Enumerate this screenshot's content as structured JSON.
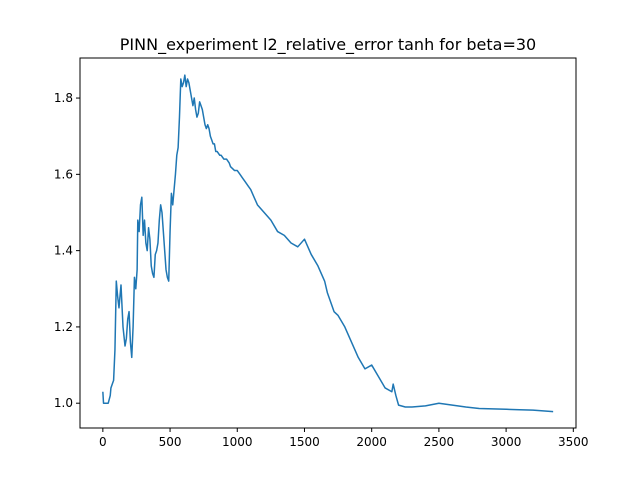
{
  "chart_data": {
    "type": "line",
    "title": "PINN_experiment l2_relative_error tanh for beta=30",
    "xlabel": "",
    "ylabel": "",
    "xlim": [
      -170,
      3520
    ],
    "ylim": [
      0.935,
      1.905
    ],
    "grid": false,
    "line_color": "#1f77b4",
    "x_ticks": [
      {
        "value": 0,
        "label": "0"
      },
      {
        "value": 500,
        "label": "500"
      },
      {
        "value": 1000,
        "label": "1000"
      },
      {
        "value": 1500,
        "label": "1500"
      },
      {
        "value": 2000,
        "label": "2000"
      },
      {
        "value": 2500,
        "label": "2500"
      },
      {
        "value": 3000,
        "label": "3000"
      },
      {
        "value": 3500,
        "label": "3500"
      }
    ],
    "y_ticks": [
      {
        "value": 1.0,
        "label": "1.0"
      },
      {
        "value": 1.2,
        "label": "1.2"
      },
      {
        "value": 1.4,
        "label": "1.4"
      },
      {
        "value": 1.6,
        "label": "1.6"
      },
      {
        "value": 1.8,
        "label": "1.8"
      }
    ],
    "series": [
      {
        "x": [
          0,
          5,
          10,
          40,
          55,
          60,
          70,
          80,
          90,
          100,
          110,
          120,
          135,
          150,
          165,
          175,
          185,
          195,
          205,
          215,
          225,
          235,
          245,
          255,
          260,
          270,
          280,
          290,
          300,
          310,
          320,
          330,
          340,
          350,
          360,
          370,
          380,
          390,
          400,
          410,
          420,
          430,
          440,
          450,
          460,
          470,
          480,
          490,
          500,
          510,
          520,
          530,
          540,
          550,
          560,
          570,
          580,
          590,
          600,
          610,
          620,
          630,
          640,
          650,
          660,
          670,
          680,
          690,
          700,
          710,
          720,
          730,
          740,
          750,
          760,
          770,
          780,
          790,
          800,
          810,
          820,
          830,
          840,
          850,
          870,
          880,
          900,
          920,
          940,
          950,
          980,
          1000,
          1020,
          1040,
          1060,
          1080,
          1100,
          1150,
          1200,
          1250,
          1300,
          1350,
          1400,
          1450,
          1500,
          1550,
          1600,
          1650,
          1670,
          1700,
          1720,
          1750,
          1800,
          1850,
          1900,
          1950,
          2000,
          2050,
          2100,
          2150,
          2160,
          2180,
          2200,
          2250,
          2300,
          2400,
          2500,
          2600,
          2700,
          2800,
          2900,
          3000,
          3100,
          3200,
          3350
        ],
        "y": [
          1.03,
          1.0,
          1.0,
          1.0,
          1.02,
          1.04,
          1.05,
          1.06,
          1.14,
          1.32,
          1.28,
          1.25,
          1.31,
          1.2,
          1.15,
          1.17,
          1.22,
          1.24,
          1.16,
          1.12,
          1.2,
          1.33,
          1.3,
          1.35,
          1.48,
          1.45,
          1.52,
          1.54,
          1.44,
          1.48,
          1.42,
          1.4,
          1.46,
          1.43,
          1.36,
          1.34,
          1.33,
          1.39,
          1.4,
          1.42,
          1.48,
          1.52,
          1.5,
          1.45,
          1.4,
          1.35,
          1.33,
          1.32,
          1.45,
          1.55,
          1.52,
          1.56,
          1.6,
          1.65,
          1.67,
          1.75,
          1.85,
          1.83,
          1.84,
          1.86,
          1.83,
          1.85,
          1.84,
          1.82,
          1.8,
          1.78,
          1.8,
          1.77,
          1.75,
          1.76,
          1.79,
          1.78,
          1.77,
          1.75,
          1.73,
          1.72,
          1.73,
          1.72,
          1.7,
          1.69,
          1.68,
          1.68,
          1.66,
          1.66,
          1.65,
          1.65,
          1.64,
          1.64,
          1.63,
          1.62,
          1.61,
          1.61,
          1.6,
          1.59,
          1.58,
          1.57,
          1.56,
          1.52,
          1.5,
          1.48,
          1.45,
          1.44,
          1.42,
          1.41,
          1.43,
          1.39,
          1.36,
          1.32,
          1.29,
          1.26,
          1.24,
          1.23,
          1.2,
          1.16,
          1.12,
          1.09,
          1.1,
          1.07,
          1.04,
          1.03,
          1.05,
          1.02,
          0.995,
          0.99,
          0.99,
          0.993,
          1.0,
          0.995,
          0.99,
          0.986,
          0.985,
          0.984,
          0.983,
          0.982,
          0.978
        ]
      }
    ]
  }
}
